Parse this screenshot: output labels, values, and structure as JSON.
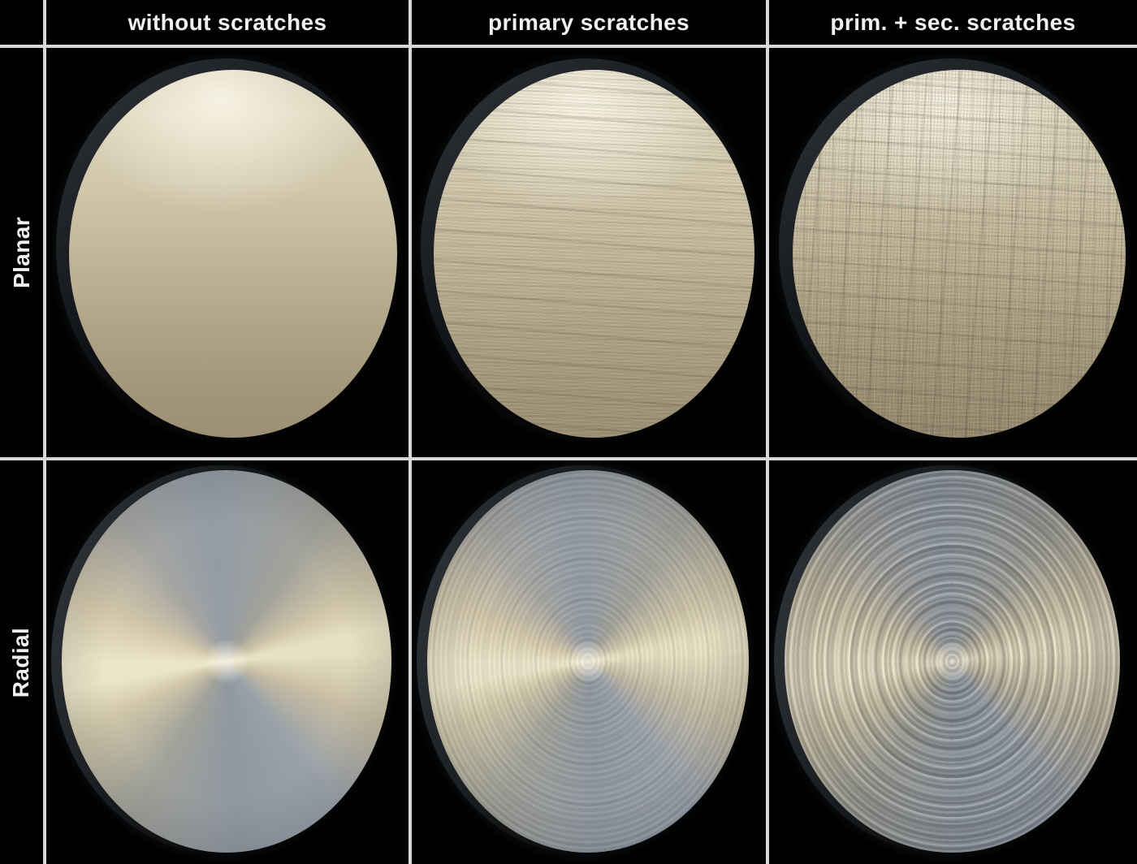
{
  "column_headers": [
    {
      "label": "without scratches"
    },
    {
      "label": "primary scratches"
    },
    {
      "label": "prim. + sec. scratches"
    }
  ],
  "row_headers": [
    {
      "label": "Planar"
    },
    {
      "label": "Radial"
    }
  ],
  "cells": [
    {
      "row": "Planar",
      "column": "without scratches",
      "description": "smooth champagne-gold metal disc, no scratch texture"
    },
    {
      "row": "Planar",
      "column": "primary scratches",
      "description": "champagne-gold disc with fine horizontal primary scratches"
    },
    {
      "row": "Planar",
      "column": "prim. + sec. scratches",
      "description": "champagne-gold disc with crosshatched primary and secondary scratches"
    },
    {
      "row": "Radial",
      "column": "without scratches",
      "description": "spun steel disc with smooth conical anisotropic highlight"
    },
    {
      "row": "Radial",
      "column": "primary scratches",
      "description": "spun steel disc with faint circular primary scratches"
    },
    {
      "row": "Radial",
      "column": "prim. + sec. scratches",
      "description": "spun steel disc with strong circular primary and secondary scratch rings"
    }
  ],
  "colors": {
    "background": "#000000",
    "grid_line": "#d8d8d8",
    "label_text": "#f0f0f0",
    "planar_highlight": "#ece6d2",
    "planar_shadow": "#9a8d73",
    "radial_silver": "#939ba5",
    "radial_gold_sheen": "#ece4c8",
    "disc_rim": "#23272b"
  }
}
